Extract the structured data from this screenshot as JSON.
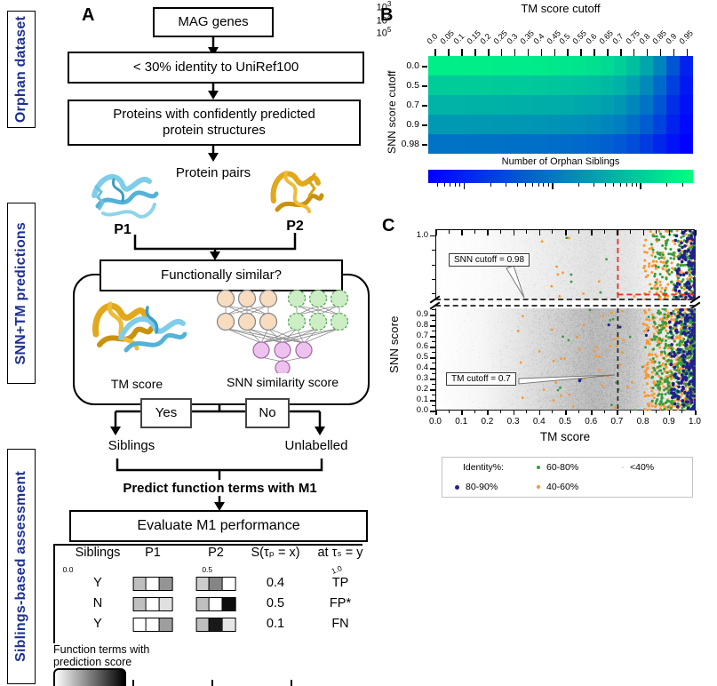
{
  "panel_labels": {
    "a": "A",
    "b": "B",
    "c": "C"
  },
  "colors": {
    "sidebar_text": "#1e3191",
    "winter_low": "#0000ff",
    "winter_high": "#00ff80",
    "scatter_green": "#339e3c",
    "scatter_orange": "#f9982f",
    "scatter_blue": "#20208e",
    "scatter_gray": "#8a8a8a",
    "red_dashed": "#e33427",
    "black_dashed": "#1a1a1a"
  },
  "sidebar": {
    "sections": [
      {
        "label": "Orphan dataset"
      },
      {
        "label": "SNN+TM predictions"
      },
      {
        "label": "Siblings-based assessment"
      }
    ]
  },
  "flowchart": {
    "box_mag": "MAG genes",
    "box_identity": "< 30% identity to UniRef100",
    "box_proteins": "Proteins with confidently predicted protein structures",
    "protein_pairs_label": "Protein pairs",
    "p1_label": "P1",
    "p2_label": "P2",
    "question_box": "Functionally similar?",
    "tm_score_label": "TM score",
    "snn_score_label": "SNN similarity score",
    "yes_label": "Yes",
    "no_label": "No",
    "siblings_label": "Siblings",
    "unlabelled_label": "Unlabelled",
    "predict_label": "Predict function terms with M1",
    "evaluate_box": "Evaluate M1 performance",
    "table": {
      "headers": [
        "Siblings",
        "P1",
        "P2",
        "S(τₚ = x)",
        "at τₛ = y"
      ],
      "rows": [
        {
          "sibling": "Y",
          "p1_scores": [
            0.25,
            0.0,
            0.42
          ],
          "p2_scores": [
            0.2,
            0.48,
            0.0
          ],
          "s_value": "0.4",
          "result": "TP"
        },
        {
          "sibling": "N",
          "p1_scores": [
            0.25,
            0.0,
            0.12
          ],
          "p2_scores": [
            0.25,
            0.0,
            0.95
          ],
          "s_value": "0.5",
          "result": "FP*"
        },
        {
          "sibling": "Y",
          "p1_scores": [
            0.0,
            0.0,
            0.38
          ],
          "p2_scores": [
            0.25,
            0.9,
            0.1
          ],
          "s_value": "0.1",
          "result": "FN"
        }
      ]
    },
    "score_legend": {
      "label_line1": "Function terms with",
      "label_line2": "prediction score",
      "ticks": [
        "0.0",
        "0.5",
        "1.0"
      ]
    }
  },
  "chart_data": [
    {
      "type": "heatmap",
      "top_axis_label": "TM score cutoff",
      "ylabel": "SNN score cutoff",
      "x_ticks": [
        "0.0",
        "0.05",
        "0.1",
        "0.15",
        "0.2",
        "0.25",
        "0.3",
        "0.35",
        "0.4",
        "0.45",
        "0.5",
        "0.55",
        "0.6",
        "0.65",
        "0.7",
        "0.75",
        "0.8",
        "0.85",
        "0.9",
        "0.95"
      ],
      "y_ticks": [
        "0.0",
        "0.5",
        "0.7",
        "0.9",
        "0.98"
      ],
      "values_log10": [
        [
          5.4,
          5.4,
          5.4,
          5.39,
          5.39,
          5.38,
          5.37,
          5.36,
          5.35,
          5.33,
          5.31,
          5.28,
          5.24,
          5.17,
          5.05,
          4.85,
          4.55,
          4.15,
          3.6,
          3.0
        ],
        [
          5.0,
          5.0,
          5.0,
          4.99,
          4.99,
          4.98,
          4.97,
          4.96,
          4.95,
          4.93,
          4.91,
          4.88,
          4.84,
          4.78,
          4.68,
          4.5,
          4.22,
          3.85,
          3.35,
          2.9
        ],
        [
          4.7,
          4.7,
          4.7,
          4.69,
          4.69,
          4.68,
          4.67,
          4.66,
          4.65,
          4.63,
          4.61,
          4.58,
          4.54,
          4.48,
          4.38,
          4.2,
          3.95,
          3.6,
          3.15,
          2.8
        ],
        [
          4.4,
          4.4,
          4.4,
          4.39,
          4.39,
          4.38,
          4.37,
          4.36,
          4.35,
          4.33,
          4.31,
          4.28,
          4.24,
          4.18,
          4.08,
          3.92,
          3.68,
          3.38,
          3.0,
          2.72
        ],
        [
          3.95,
          3.95,
          3.95,
          3.94,
          3.94,
          3.93,
          3.92,
          3.91,
          3.9,
          3.88,
          3.86,
          3.83,
          3.79,
          3.73,
          3.64,
          3.5,
          3.3,
          3.05,
          2.82,
          2.62
        ]
      ],
      "colorbar": {
        "label": "Number of Orphan Siblings",
        "scale": "log",
        "tick_exponents": [
          3,
          4,
          5
        ],
        "domain_log10": [
          2.6,
          5.6
        ]
      }
    },
    {
      "type": "scatter",
      "xlabel": "TM score",
      "ylabel": "SNN score",
      "x_ticks": [
        "0.0",
        "0.1",
        "0.2",
        "0.3",
        "0.4",
        "0.5",
        "0.6",
        "0.7",
        "0.8",
        "0.9",
        "1.0"
      ],
      "y_ticks_bottom": [
        "0.0",
        "0.1",
        "0.2",
        "0.3",
        "0.4",
        "0.5",
        "0.6",
        "0.7",
        "0.8",
        "0.9"
      ],
      "y_tick_top": "1.0",
      "broken_y_axis": true,
      "bottom_range": [
        0.0,
        0.96
      ],
      "top_range": [
        0.978,
        1.002
      ],
      "cutoffs": {
        "tm": 0.7,
        "snn": 0.98
      },
      "annotations": [
        {
          "text": "SNN cutoff = 0.98"
        },
        {
          "text": "TM cutoff = 0.7"
        }
      ],
      "legend": {
        "entries": [
          {
            "label": "Identity%:",
            "marker": null
          },
          {
            "label": "60-80%",
            "color": "#339e3c",
            "size": 4
          },
          {
            "label": "<40%",
            "color": "#d6d6d6",
            "size": 2
          },
          {
            "label": "80-90%",
            "color": "#20208e",
            "size": 5
          },
          {
            "label": "40-60%",
            "color": "#f9982f",
            "size": 4
          },
          {
            "label": "",
            "marker": null
          }
        ]
      },
      "generation": {
        "seed": 1234567,
        "bottom": {
          "speckles_gauss": 7000,
          "speckles_uniform": 1400,
          "gauss_mean": 0.63,
          "gauss_sd": 0.16,
          "green": 480,
          "orange": 500,
          "blue": 240,
          "outliers_orange": 42,
          "outliers_green": 16,
          "outliers_blue": 6
        },
        "top": {
          "speckles_gauss": 2400,
          "speckles_uniform": 500,
          "gauss_mean": 0.6,
          "gauss_sd": 0.18,
          "green": 200,
          "orange": 220,
          "blue": 130,
          "outliers_orange": 12,
          "outliers_green": 5,
          "outliers_blue": 2
        }
      }
    }
  ]
}
